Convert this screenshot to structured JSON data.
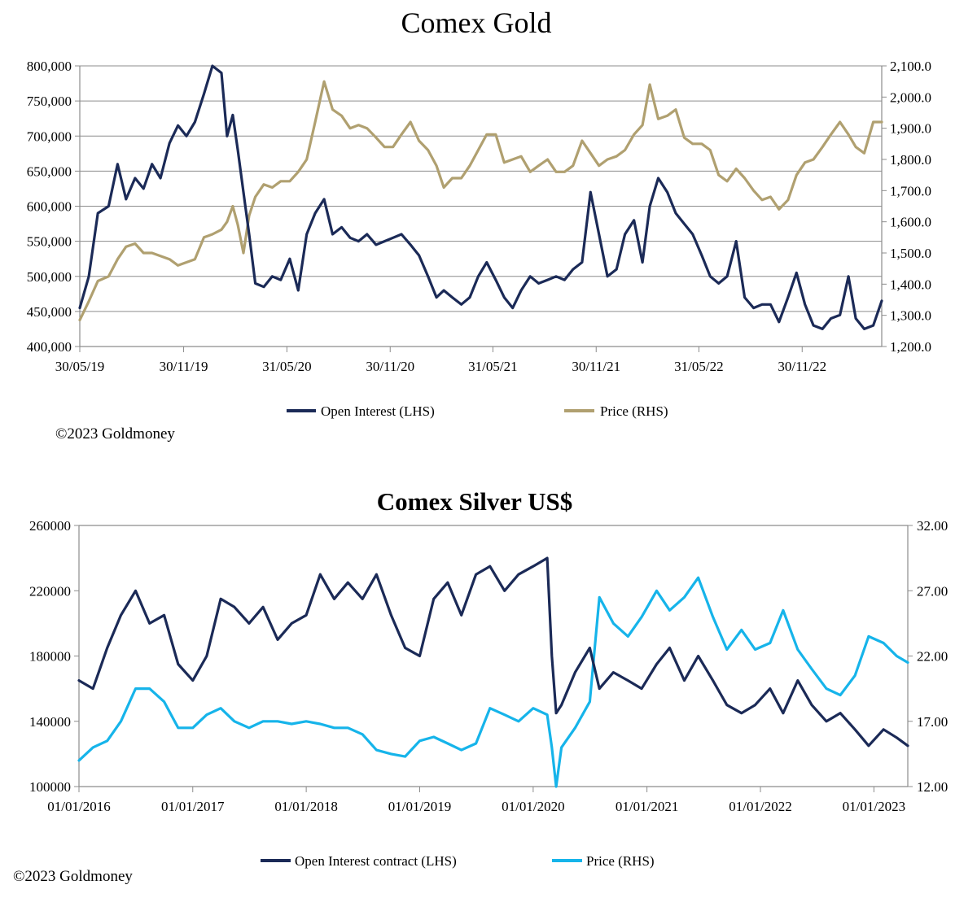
{
  "colors": {
    "open_interest": "#1b2a57",
    "gold_price": "#b0a070",
    "silver_price": "#16b4ea",
    "grid": "#8c8c8c"
  },
  "chart_data": [
    {
      "type": "line",
      "title": "Comex Gold",
      "copyright": "©2023 Goldmoney",
      "x_ticks": [
        "30/05/19",
        "30/11/19",
        "31/05/20",
        "30/11/20",
        "31/05/21",
        "30/11/21",
        "31/05/22",
        "30/11/22"
      ],
      "xlim": [
        "2019-05-30",
        "2023-04-20"
      ],
      "left_axis": {
        "ylim": [
          400000,
          800000
        ],
        "ticks": [
          "400,000",
          "450,000",
          "500,000",
          "550,000",
          "600,000",
          "650,000",
          "700,000",
          "750,000",
          "800,000"
        ]
      },
      "right_axis": {
        "ylim": [
          1200,
          2100
        ],
        "ticks": [
          "1,200.0",
          "1,300.0",
          "1,400.0",
          "1,500.0",
          "1,600.0",
          "1,700.0",
          "1,800.0",
          "1,900.0",
          "2,000.0",
          "2,100.0"
        ]
      },
      "grid": true,
      "legend_position": "bottom",
      "series": [
        {
          "name": "Open Interest (LHS)",
          "axis": "left",
          "x": [
            "2019-05-30",
            "2019-06-15",
            "2019-07-01",
            "2019-07-20",
            "2019-08-05",
            "2019-08-20",
            "2019-09-05",
            "2019-09-20",
            "2019-10-05",
            "2019-10-20",
            "2019-11-05",
            "2019-11-20",
            "2019-12-05",
            "2019-12-20",
            "2020-01-05",
            "2020-01-20",
            "2020-02-05",
            "2020-02-15",
            "2020-02-25",
            "2020-03-05",
            "2020-03-15",
            "2020-03-25",
            "2020-04-05",
            "2020-04-20",
            "2020-05-05",
            "2020-05-20",
            "2020-06-05",
            "2020-06-20",
            "2020-07-05",
            "2020-07-20",
            "2020-08-05",
            "2020-08-20",
            "2020-09-05",
            "2020-09-20",
            "2020-10-05",
            "2020-10-20",
            "2020-11-05",
            "2020-11-20",
            "2020-12-05",
            "2020-12-20",
            "2021-01-05",
            "2021-01-20",
            "2021-02-05",
            "2021-02-20",
            "2021-03-05",
            "2021-03-20",
            "2021-04-05",
            "2021-04-20",
            "2021-05-05",
            "2021-05-20",
            "2021-06-05",
            "2021-06-20",
            "2021-07-05",
            "2021-07-20",
            "2021-08-05",
            "2021-08-20",
            "2021-09-05",
            "2021-09-20",
            "2021-10-05",
            "2021-10-20",
            "2021-11-05",
            "2021-11-20",
            "2021-12-05",
            "2021-12-20",
            "2022-01-05",
            "2022-01-20",
            "2022-02-05",
            "2022-02-20",
            "2022-03-05",
            "2022-03-20",
            "2022-04-05",
            "2022-04-20",
            "2022-05-05",
            "2022-05-20",
            "2022-06-05",
            "2022-06-20",
            "2022-07-05",
            "2022-07-20",
            "2022-08-05",
            "2022-08-20",
            "2022-09-05",
            "2022-09-20",
            "2022-10-05",
            "2022-10-20",
            "2022-11-05",
            "2022-11-20",
            "2022-12-05",
            "2022-12-20",
            "2023-01-05",
            "2023-01-20",
            "2023-02-05",
            "2023-02-20",
            "2023-03-05",
            "2023-03-20",
            "2023-04-05",
            "2023-04-20"
          ],
          "y": [
            455000,
            500000,
            590000,
            600000,
            660000,
            610000,
            640000,
            625000,
            660000,
            640000,
            690000,
            715000,
            700000,
            720000,
            760000,
            800000,
            790000,
            700000,
            730000,
            680000,
            620000,
            560000,
            490000,
            485000,
            500000,
            495000,
            525000,
            480000,
            560000,
            590000,
            610000,
            560000,
            570000,
            555000,
            550000,
            560000,
            545000,
            550000,
            555000,
            560000,
            545000,
            530000,
            500000,
            470000,
            480000,
            470000,
            460000,
            470000,
            500000,
            520000,
            495000,
            470000,
            455000,
            480000,
            500000,
            490000,
            495000,
            500000,
            495000,
            510000,
            520000,
            620000,
            560000,
            500000,
            510000,
            560000,
            580000,
            520000,
            600000,
            640000,
            620000,
            590000,
            575000,
            560000,
            530000,
            500000,
            490000,
            500000,
            550000,
            470000,
            455000,
            460000,
            460000,
            435000,
            470000,
            505000,
            460000,
            430000,
            425000,
            440000,
            445000,
            500000,
            440000,
            425000,
            430000,
            465000
          ]
        },
        {
          "name": "Price (RHS)",
          "axis": "right",
          "x": [
            "2019-05-30",
            "2019-06-15",
            "2019-07-01",
            "2019-07-20",
            "2019-08-05",
            "2019-08-20",
            "2019-09-05",
            "2019-09-20",
            "2019-10-05",
            "2019-10-20",
            "2019-11-05",
            "2019-11-20",
            "2019-12-05",
            "2019-12-20",
            "2020-01-05",
            "2020-01-20",
            "2020-02-05",
            "2020-02-15",
            "2020-02-25",
            "2020-03-05",
            "2020-03-15",
            "2020-03-25",
            "2020-04-05",
            "2020-04-20",
            "2020-05-05",
            "2020-05-20",
            "2020-06-05",
            "2020-06-20",
            "2020-07-05",
            "2020-07-20",
            "2020-08-05",
            "2020-08-20",
            "2020-09-05",
            "2020-09-20",
            "2020-10-05",
            "2020-10-20",
            "2020-11-05",
            "2020-11-20",
            "2020-12-05",
            "2020-12-20",
            "2021-01-05",
            "2021-01-20",
            "2021-02-05",
            "2021-02-20",
            "2021-03-05",
            "2021-03-20",
            "2021-04-05",
            "2021-04-20",
            "2021-05-05",
            "2021-05-20",
            "2021-06-05",
            "2021-06-20",
            "2021-07-05",
            "2021-07-20",
            "2021-08-05",
            "2021-08-20",
            "2021-09-05",
            "2021-09-20",
            "2021-10-05",
            "2021-10-20",
            "2021-11-05",
            "2021-11-20",
            "2021-12-05",
            "2021-12-20",
            "2022-01-05",
            "2022-01-20",
            "2022-02-05",
            "2022-02-20",
            "2022-03-05",
            "2022-03-20",
            "2022-04-05",
            "2022-04-20",
            "2022-05-05",
            "2022-05-20",
            "2022-06-05",
            "2022-06-20",
            "2022-07-05",
            "2022-07-20",
            "2022-08-05",
            "2022-08-20",
            "2022-09-05",
            "2022-09-20",
            "2022-10-05",
            "2022-10-20",
            "2022-11-05",
            "2022-11-20",
            "2022-12-05",
            "2022-12-20",
            "2023-01-05",
            "2023-01-20",
            "2023-02-05",
            "2023-02-20",
            "2023-03-05",
            "2023-03-20",
            "2023-04-05",
            "2023-04-20"
          ],
          "y": [
            1285,
            1345,
            1410,
            1425,
            1480,
            1520,
            1530,
            1500,
            1500,
            1490,
            1480,
            1460,
            1470,
            1480,
            1550,
            1560,
            1575,
            1600,
            1650,
            1590,
            1500,
            1620,
            1680,
            1720,
            1710,
            1730,
            1730,
            1760,
            1800,
            1920,
            2050,
            1960,
            1940,
            1900,
            1910,
            1900,
            1870,
            1840,
            1840,
            1880,
            1920,
            1860,
            1830,
            1780,
            1710,
            1740,
            1740,
            1780,
            1830,
            1880,
            1880,
            1790,
            1800,
            1810,
            1760,
            1780,
            1800,
            1760,
            1760,
            1780,
            1860,
            1820,
            1780,
            1800,
            1810,
            1830,
            1880,
            1910,
            2040,
            1930,
            1940,
            1960,
            1870,
            1850,
            1850,
            1830,
            1750,
            1730,
            1770,
            1740,
            1700,
            1670,
            1680,
            1640,
            1670,
            1750,
            1790,
            1800,
            1840,
            1880,
            1920,
            1880,
            1840,
            1820,
            1920,
            1920
          ]
        }
      ]
    },
    {
      "type": "line",
      "title": "Comex Silver US$",
      "copyright": "©2023 Goldmoney",
      "x_ticks": [
        "01/01/2016",
        "01/01/2017",
        "01/01/2018",
        "01/01/2019",
        "01/01/2020",
        "01/01/2021",
        "01/01/2022",
        "01/01/2023"
      ],
      "xlim": [
        "2016-01-01",
        "2023-04-20"
      ],
      "left_axis": {
        "ylim": [
          100000,
          260000
        ],
        "ticks": [
          "100000",
          "140000",
          "180000",
          "220000",
          "260000"
        ]
      },
      "right_axis": {
        "ylim": [
          12,
          32
        ],
        "ticks": [
          "12.00",
          "17.00",
          "22.00",
          "27.00",
          "32.00"
        ]
      },
      "grid": false,
      "legend_position": "bottom",
      "series": [
        {
          "name": "Open Interest contract (LHS)",
          "axis": "left",
          "x": [
            "2016-01-01",
            "2016-02-15",
            "2016-04-01",
            "2016-05-15",
            "2016-07-01",
            "2016-08-15",
            "2016-10-01",
            "2016-11-15",
            "2017-01-01",
            "2017-02-15",
            "2017-04-01",
            "2017-05-15",
            "2017-07-01",
            "2017-08-15",
            "2017-10-01",
            "2017-11-15",
            "2018-01-01",
            "2018-02-15",
            "2018-04-01",
            "2018-05-15",
            "2018-07-01",
            "2018-08-15",
            "2018-10-01",
            "2018-11-15",
            "2019-01-01",
            "2019-02-15",
            "2019-04-01",
            "2019-05-15",
            "2019-07-01",
            "2019-08-15",
            "2019-10-01",
            "2019-11-15",
            "2020-01-01",
            "2020-02-15",
            "2020-03-01",
            "2020-03-15",
            "2020-04-01",
            "2020-05-15",
            "2020-07-01",
            "2020-08-01",
            "2020-09-15",
            "2020-11-01",
            "2020-12-15",
            "2021-02-01",
            "2021-03-15",
            "2021-05-01",
            "2021-06-15",
            "2021-08-01",
            "2021-09-15",
            "2021-11-01",
            "2021-12-15",
            "2022-02-01",
            "2022-03-15",
            "2022-05-01",
            "2022-06-15",
            "2022-08-01",
            "2022-09-15",
            "2022-11-01",
            "2022-12-15",
            "2023-02-01",
            "2023-03-15",
            "2023-04-20"
          ],
          "y": [
            165000,
            160000,
            185000,
            205000,
            220000,
            200000,
            205000,
            175000,
            165000,
            180000,
            215000,
            210000,
            200000,
            210000,
            190000,
            200000,
            205000,
            230000,
            215000,
            225000,
            215000,
            230000,
            205000,
            185000,
            180000,
            215000,
            225000,
            205000,
            230000,
            235000,
            220000,
            230000,
            235000,
            240000,
            180000,
            145000,
            150000,
            170000,
            185000,
            160000,
            170000,
            165000,
            160000,
            175000,
            185000,
            165000,
            180000,
            165000,
            150000,
            145000,
            150000,
            160000,
            145000,
            165000,
            150000,
            140000,
            145000,
            135000,
            125000,
            135000,
            130000,
            125000
          ]
        },
        {
          "name": "Price (RHS)",
          "axis": "right",
          "x": [
            "2016-01-01",
            "2016-02-15",
            "2016-04-01",
            "2016-05-15",
            "2016-07-01",
            "2016-08-15",
            "2016-10-01",
            "2016-11-15",
            "2017-01-01",
            "2017-02-15",
            "2017-04-01",
            "2017-05-15",
            "2017-07-01",
            "2017-08-15",
            "2017-10-01",
            "2017-11-15",
            "2018-01-01",
            "2018-02-15",
            "2018-04-01",
            "2018-05-15",
            "2018-07-01",
            "2018-08-15",
            "2018-10-01",
            "2018-11-15",
            "2019-01-01",
            "2019-02-15",
            "2019-04-01",
            "2019-05-15",
            "2019-07-01",
            "2019-08-15",
            "2019-10-01",
            "2019-11-15",
            "2020-01-01",
            "2020-02-15",
            "2020-03-01",
            "2020-03-15",
            "2020-04-01",
            "2020-05-15",
            "2020-07-01",
            "2020-08-01",
            "2020-09-15",
            "2020-11-01",
            "2020-12-15",
            "2021-02-01",
            "2021-03-15",
            "2021-05-01",
            "2021-06-15",
            "2021-08-01",
            "2021-09-15",
            "2021-11-01",
            "2021-12-15",
            "2022-02-01",
            "2022-03-15",
            "2022-05-01",
            "2022-06-15",
            "2022-08-01",
            "2022-09-15",
            "2022-11-01",
            "2022-12-15",
            "2023-02-01",
            "2023-03-15",
            "2023-04-20"
          ],
          "y": [
            14.0,
            15.0,
            15.5,
            17.0,
            19.5,
            19.5,
            18.5,
            16.5,
            16.5,
            17.5,
            18.0,
            17.0,
            16.5,
            17.0,
            17.0,
            16.8,
            17.0,
            16.8,
            16.5,
            16.5,
            16.0,
            14.8,
            14.5,
            14.3,
            15.5,
            15.8,
            15.3,
            14.8,
            15.3,
            18.0,
            17.5,
            17.0,
            18.0,
            17.5,
            15.0,
            12.0,
            15.0,
            16.5,
            18.5,
            26.5,
            24.5,
            23.5,
            25.0,
            27.0,
            25.5,
            26.5,
            28.0,
            25.0,
            22.5,
            24.0,
            22.5,
            23.0,
            25.5,
            22.5,
            21.0,
            19.5,
            19.0,
            20.5,
            23.5,
            23.0,
            22.0,
            21.5
          ]
        }
      ]
    }
  ]
}
